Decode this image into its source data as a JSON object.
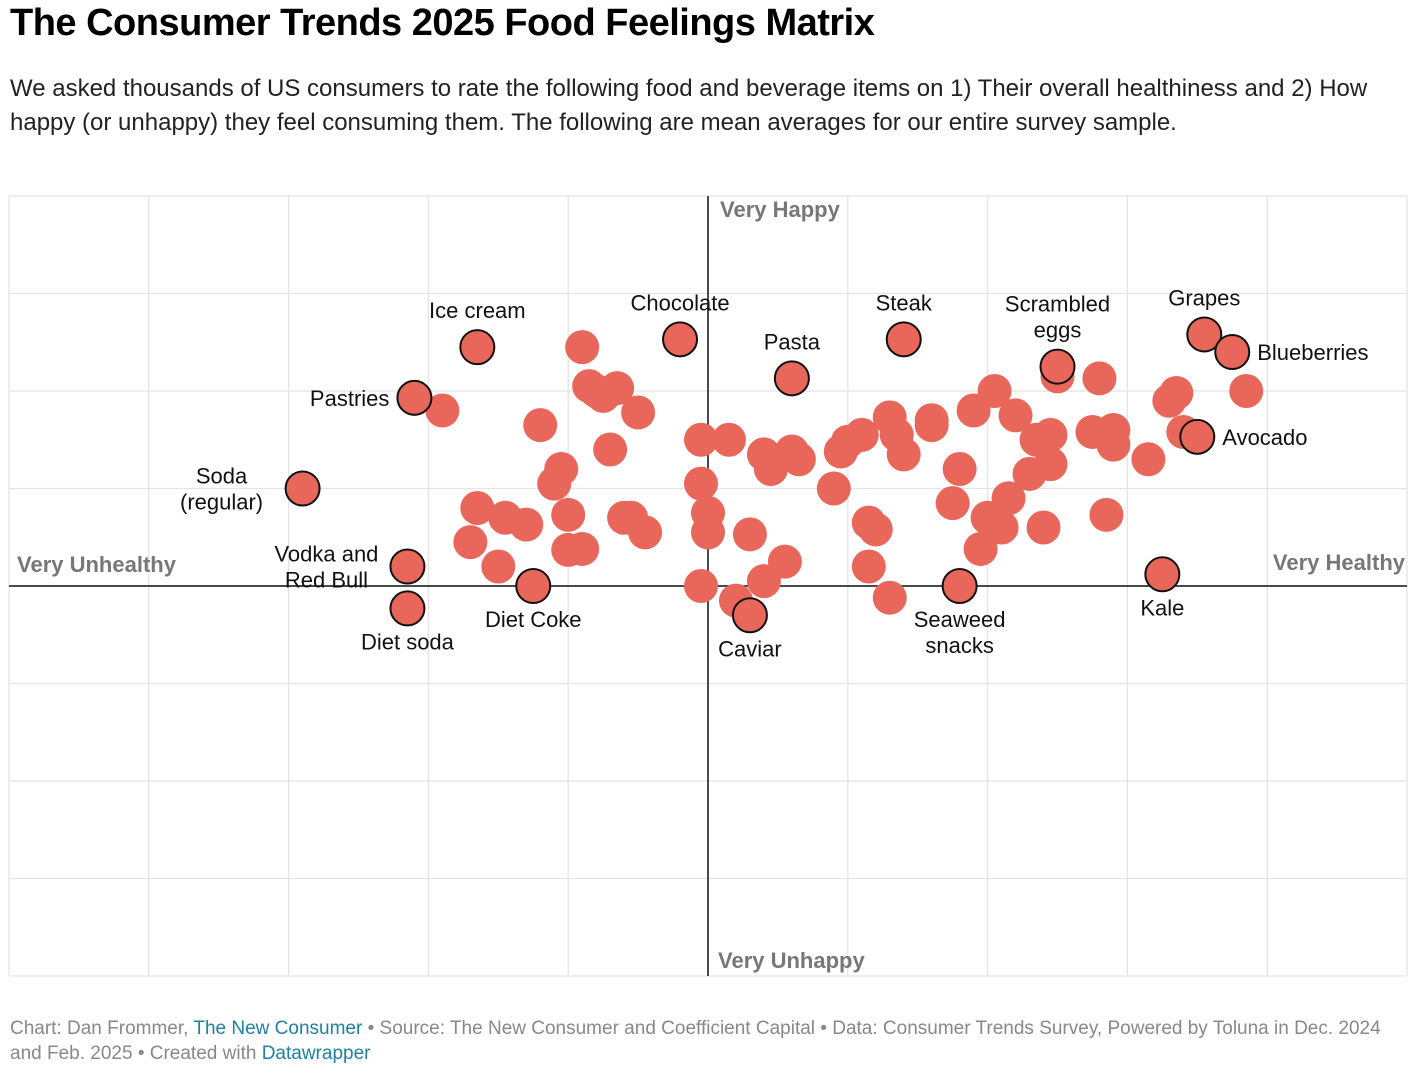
{
  "title": "The Consumer Trends 2025 Food Feelings Matrix",
  "subtitle": "We asked thousands of US consumers to rate the following food and beverage items on 1) Their overall healthiness and 2) How happy (or unhappy) they feel consuming them. The following are mean averages for our entire survey sample.",
  "footer": {
    "chart_by": "Chart: Dan Frommer,",
    "publisher_link": "The New Consumer",
    "source": "• Source: The New Consumer and Coefficient Capital • Data: Consumer Trends Survey, Powered by Toluna in Dec. 2024 and Feb. 2025 • Created with",
    "tool_link": "Datawrapper",
    "link_color": "#1d81a2"
  },
  "colors": {
    "dot": "#e8665a",
    "highlight_stroke": "#111111",
    "axis_label": "#777777",
    "grid": "#e4e4e4"
  },
  "chart_data": {
    "type": "scatter",
    "title": "The Consumer Trends 2025 Food Feelings Matrix",
    "xlim": [
      -5,
      5
    ],
    "ylim": [
      -4,
      4
    ],
    "grid": true,
    "quadrant_labels": {
      "left": "Very Unhealthy",
      "right": "Very Healthy",
      "top": "Very Happy",
      "bottom": "Very Unhappy"
    },
    "labeled_points": [
      {
        "label": "Ice cream",
        "lines": [
          "Ice cream"
        ],
        "x": -1.65,
        "y": 2.45,
        "label_pos": "above"
      },
      {
        "label": "Chocolate",
        "lines": [
          "Chocolate"
        ],
        "x": -0.2,
        "y": 2.53,
        "label_pos": "above"
      },
      {
        "label": "Pasta",
        "lines": [
          "Pasta"
        ],
        "x": 0.6,
        "y": 2.13,
        "label_pos": "above"
      },
      {
        "label": "Steak",
        "lines": [
          "Steak"
        ],
        "x": 1.4,
        "y": 2.53,
        "label_pos": "above"
      },
      {
        "label": "Scrambled eggs",
        "lines": [
          "Scrambled",
          "eggs"
        ],
        "x": 2.5,
        "y": 2.25,
        "label_pos": "above"
      },
      {
        "label": "Grapes",
        "lines": [
          "Grapes"
        ],
        "x": 3.55,
        "y": 2.58,
        "label_pos": "above"
      },
      {
        "label": "Blueberries",
        "lines": [
          "Blueberries"
        ],
        "x": 3.75,
        "y": 2.4,
        "label_pos": "right"
      },
      {
        "label": "Pastries",
        "lines": [
          "Pastries"
        ],
        "x": -2.1,
        "y": 1.93,
        "label_pos": "left"
      },
      {
        "label": "Avocado",
        "lines": [
          "Avocado"
        ],
        "x": 3.5,
        "y": 1.53,
        "label_pos": "right"
      },
      {
        "label": "Soda (regular)",
        "lines": [
          "Soda",
          "(regular)"
        ],
        "x": -2.9,
        "y": 1.0,
        "label_pos": "left"
      },
      {
        "label": "Vodka and Red Bull",
        "lines": [
          "Vodka and",
          "Red Bull"
        ],
        "x": -2.15,
        "y": 0.2,
        "label_pos": "left"
      },
      {
        "label": "Diet soda",
        "lines": [
          "Diet soda"
        ],
        "x": -2.15,
        "y": -0.23,
        "label_pos": "below"
      },
      {
        "label": "Diet Coke",
        "lines": [
          "Diet Coke"
        ],
        "x": -1.25,
        "y": 0.0,
        "label_pos": "below"
      },
      {
        "label": "Caviar",
        "lines": [
          "Caviar"
        ],
        "x": 0.3,
        "y": -0.3,
        "label_pos": "below"
      },
      {
        "label": "Seaweed snacks",
        "lines": [
          "Seaweed",
          "snacks"
        ],
        "x": 1.8,
        "y": 0.0,
        "label_pos": "below"
      },
      {
        "label": "Kale",
        "lines": [
          "Kale"
        ],
        "x": 3.25,
        "y": 0.12,
        "label_pos": "below"
      }
    ],
    "other_points": [
      [
        -1.9,
        1.8
      ],
      [
        -1.65,
        0.8
      ],
      [
        -1.45,
        0.7
      ],
      [
        -1.3,
        0.63
      ],
      [
        -1.7,
        0.45
      ],
      [
        -1.5,
        0.2
      ],
      [
        -1.2,
        1.65
      ],
      [
        -1.05,
        1.2
      ],
      [
        -1.1,
        1.05
      ],
      [
        -1.0,
        0.73
      ],
      [
        -1.0,
        0.37
      ],
      [
        -0.9,
        0.38
      ],
      [
        -0.9,
        2.45
      ],
      [
        -0.85,
        2.05
      ],
      [
        -0.8,
        2.0
      ],
      [
        -0.75,
        1.95
      ],
      [
        -0.65,
        2.03
      ],
      [
        -0.5,
        1.78
      ],
      [
        -0.7,
        1.4
      ],
      [
        -0.6,
        0.7
      ],
      [
        -0.55,
        0.7
      ],
      [
        -0.45,
        0.55
      ],
      [
        -0.05,
        1.5
      ],
      [
        -0.05,
        1.05
      ],
      [
        0.0,
        0.75
      ],
      [
        0.0,
        0.55
      ],
      [
        -0.05,
        0.0
      ],
      [
        0.15,
        1.5
      ],
      [
        0.2,
        -0.15
      ],
      [
        0.3,
        0.53
      ],
      [
        0.4,
        0.05
      ],
      [
        0.55,
        0.25
      ],
      [
        0.4,
        1.35
      ],
      [
        0.45,
        1.2
      ],
      [
        0.6,
        1.38
      ],
      [
        0.65,
        1.3
      ],
      [
        0.9,
        1.0
      ],
      [
        0.95,
        1.38
      ],
      [
        1.0,
        1.48
      ],
      [
        1.1,
        1.55
      ],
      [
        1.15,
        0.65
      ],
      [
        1.2,
        0.58
      ],
      [
        1.3,
        1.73
      ],
      [
        1.35,
        1.55
      ],
      [
        1.4,
        1.35
      ],
      [
        1.15,
        0.2
      ],
      [
        1.3,
        -0.12
      ],
      [
        1.6,
        1.7
      ],
      [
        1.6,
        1.65
      ],
      [
        1.9,
        1.8
      ],
      [
        1.8,
        1.2
      ],
      [
        1.75,
        0.85
      ],
      [
        2.05,
        2.0
      ],
      [
        2.2,
        1.75
      ],
      [
        2.15,
        0.9
      ],
      [
        2.0,
        0.7
      ],
      [
        2.1,
        0.6
      ],
      [
        1.95,
        0.38
      ],
      [
        2.35,
        1.5
      ],
      [
        2.45,
        1.55
      ],
      [
        2.3,
        1.15
      ],
      [
        2.45,
        1.25
      ],
      [
        2.4,
        0.6
      ],
      [
        2.5,
        2.15
      ],
      [
        2.8,
        2.13
      ],
      [
        2.75,
        1.58
      ],
      [
        2.9,
        1.6
      ],
      [
        2.9,
        1.45
      ],
      [
        2.85,
        0.73
      ],
      [
        3.15,
        1.3
      ],
      [
        3.3,
        1.9
      ],
      [
        3.35,
        1.98
      ],
      [
        3.4,
        1.58
      ],
      [
        3.85,
        2.0
      ]
    ]
  }
}
